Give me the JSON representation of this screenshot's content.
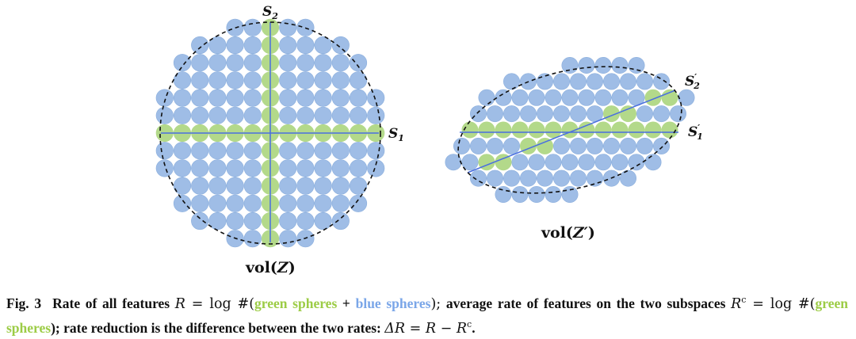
{
  "figure": {
    "label_s1": "S",
    "label_s1_sub": "1",
    "label_s2": "S",
    "label_s2_sub": "2",
    "label_s1p": "S",
    "label_s1p_sub": "1",
    "label_s2p": "S",
    "label_s2p_sub": "2",
    "prime": "′",
    "vol_left_prefix": "vol(",
    "vol_left_var": "Z",
    "vol_left_suffix": ")",
    "vol_right_prefix": "vol(",
    "vol_right_var": "Z′",
    "vol_right_suffix": ")",
    "colors": {
      "blue_sphere": "#9fbde6",
      "blue_sphere_edge": "#8aaedd",
      "green_sphere": "#b3d98a",
      "axis_line": "#4a6fe0",
      "boundary": "#111111"
    }
  },
  "caption": {
    "fig_number": "Fig. 3",
    "p1": "Rate of all features ",
    "R": "R",
    "eq": " = ",
    "log": "log",
    "hash": " #(",
    "green_spheres": "green spheres",
    "plus": " + ",
    "blue_spheres": "blue spheres",
    "close": ");",
    "p2": " average rate of features on the two subspaces ",
    "Rc": "R",
    "c_sup": "c",
    "eq2": " = ",
    "log2": "log",
    "hash2": " #(",
    "green_spheres2": "green spheres",
    "p3": "); rate reduction is the difference between the two rates: ",
    "dR": "ΔR",
    "eq3": " = ",
    "R2": "R",
    "minus": " − ",
    "Rc2": "R",
    "c_sup2": "c",
    "period": "."
  }
}
